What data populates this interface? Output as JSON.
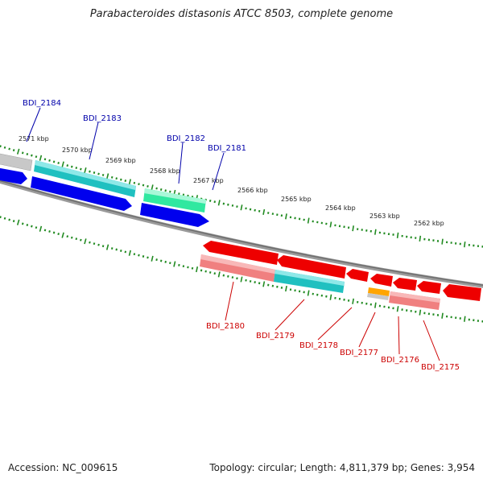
{
  "title": "Parabacteroides distasonis ATCC 8503, complete genome",
  "footer": {
    "accession": "Accession: NC_009615",
    "summary": "Topology: circular; Length: 4,811,379 bp; Genes: 3,954"
  },
  "ruler": {
    "labels": [
      "2571 kbp",
      "2570 kbp",
      "2569 kbp",
      "2568 kbp",
      "2567 kbp",
      "2566 kbp",
      "2565 kbp",
      "2564 kbp",
      "2563 kbp",
      "2562 kbp"
    ]
  },
  "genes_top": [
    {
      "label": "BDI_2184",
      "color": "#00008b"
    },
    {
      "label": "BDI_2183",
      "color": "#00008b"
    },
    {
      "label": "BDI_2182",
      "color": "#00008b"
    },
    {
      "label": "BDI_2181",
      "color": "#00008b"
    }
  ],
  "genes_bottom": [
    {
      "label": "BDI_2180",
      "color": "#cc0000"
    },
    {
      "label": "BDI_2179",
      "color": "#cc0000"
    },
    {
      "label": "BDI_2178",
      "color": "#cc0000"
    },
    {
      "label": "BDI_2177",
      "color": "#cc0000"
    },
    {
      "label": "BDI_2176",
      "color": "#cc0000"
    },
    {
      "label": "BDI_2175",
      "color": "#cc0000"
    }
  ],
  "colors": {
    "ruler_tick": "#228b22",
    "backbone": "#888888",
    "forward_cds": "#0000ff",
    "reverse_cds": "#ee0000",
    "cyan_feature": "#20c0c0",
    "green_feature": "#30e8a0",
    "pink_feature": "#f08080",
    "orange_feature": "#ffa500",
    "grey_feature": "#c8c8c8"
  }
}
